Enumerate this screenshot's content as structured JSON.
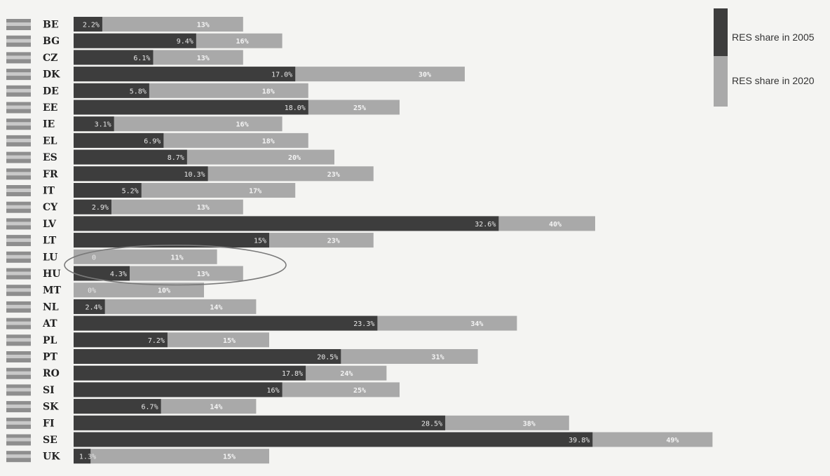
{
  "colors": {
    "series_2005": "#3d3d3d",
    "series_2020": "#a9a9a9",
    "background": "#f4f4f2"
  },
  "legend": {
    "position": "top-right",
    "items": [
      {
        "label": "RES share in 2005",
        "color": "#3d3d3d"
      },
      {
        "label": "RES share in 2020",
        "color": "#a9a9a9"
      }
    ]
  },
  "chart_data": {
    "type": "bar",
    "orientation": "horizontal",
    "title": "",
    "xlabel": "",
    "ylabel": "",
    "grid": false,
    "legend_position": "top-right",
    "xlim": [
      0,
      50
    ],
    "categories": [
      "BE",
      "BG",
      "CZ",
      "DK",
      "DE",
      "EE",
      "IE",
      "EL",
      "ES",
      "FR",
      "IT",
      "CY",
      "LV",
      "LT",
      "LU",
      "HU",
      "MT",
      "NL",
      "AT",
      "PL",
      "PT",
      "RO",
      "SI",
      "SK",
      "FI",
      "SE",
      "UK"
    ],
    "series": [
      {
        "name": "RES share in 2005",
        "values": [
          2.2,
          9.4,
          6.1,
          17.0,
          5.8,
          18.0,
          3.1,
          6.9,
          8.7,
          10.3,
          5.2,
          2.9,
          32.6,
          15,
          0,
          4.3,
          0,
          2.4,
          23.3,
          7.2,
          20.5,
          17.8,
          16,
          6.7,
          28.5,
          39.8,
          1.3
        ],
        "labels": [
          "2.2%",
          "9.4%",
          "6.1%",
          "17.0%",
          "5.8%",
          "18.0%",
          "3.1%",
          "6.9%",
          "8.7%",
          "10.3%",
          "5.2%",
          "2.9%",
          "32.6%",
          "15%",
          "0",
          "4.3%",
          "0%",
          "2.4%",
          "23.3%",
          "7.2%",
          "20.5%",
          "17.8%",
          "16%",
          "6.7%",
          "28.5%",
          "39.8%",
          "1.3%"
        ]
      },
      {
        "name": "RES share in 2020",
        "values": [
          13,
          16,
          13,
          30,
          18,
          25,
          16,
          18,
          20,
          23,
          17,
          13,
          40,
          23,
          11,
          13,
          10,
          14,
          34,
          15,
          31,
          24,
          25,
          14,
          38,
          49,
          15
        ],
        "labels": [
          "13%",
          "16%",
          "13%",
          "30%",
          "18%",
          "25%",
          "16%",
          "18%",
          "20%",
          "23%",
          "17%",
          "13%",
          "40%",
          "23%",
          "11%",
          "13%",
          "10%",
          "14%",
          "34%",
          "15%",
          "31%",
          "24%",
          "25%",
          "14%",
          "38%",
          "49%",
          "15%"
        ]
      }
    ],
    "annotations": [
      {
        "type": "ellipse",
        "encircles": [
          "LU",
          "HU"
        ]
      }
    ]
  }
}
